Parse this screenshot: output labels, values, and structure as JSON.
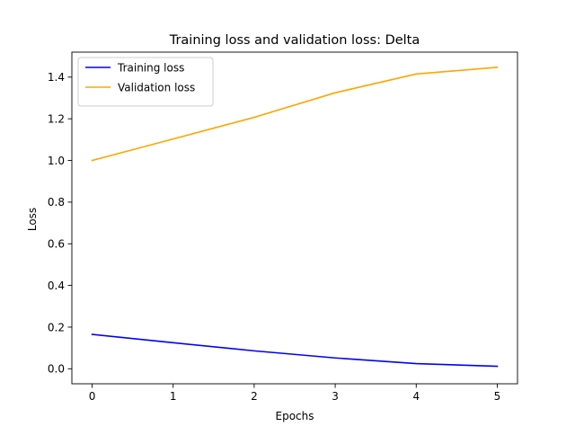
{
  "chart_data": {
    "type": "line",
    "title": "Training loss and validation loss: Delta",
    "xlabel": "Epochs",
    "ylabel": "Loss",
    "x": [
      0,
      1,
      2,
      3,
      4,
      5
    ],
    "xlim": [
      -0.25,
      5.25
    ],
    "ylim": [
      -0.072,
      1.52
    ],
    "xticks": [
      0,
      1,
      2,
      3,
      4,
      5
    ],
    "yticks": [
      0.0,
      0.2,
      0.4,
      0.6,
      0.8,
      1.0,
      1.2,
      1.4
    ],
    "ytick_labels": [
      "0.0",
      "0.2",
      "0.4",
      "0.6",
      "0.8",
      "1.0",
      "1.2",
      "1.4"
    ],
    "grid": false,
    "legend_position": "upper-left",
    "series": [
      {
        "name": "Training loss",
        "color": "#0000ff",
        "values": [
          0.165,
          0.125,
          0.086,
          0.052,
          0.025,
          0.012
        ]
      },
      {
        "name": "Validation loss",
        "color": "#ffa500",
        "values": [
          1.0,
          1.103,
          1.207,
          1.325,
          1.415,
          1.447
        ]
      }
    ]
  }
}
